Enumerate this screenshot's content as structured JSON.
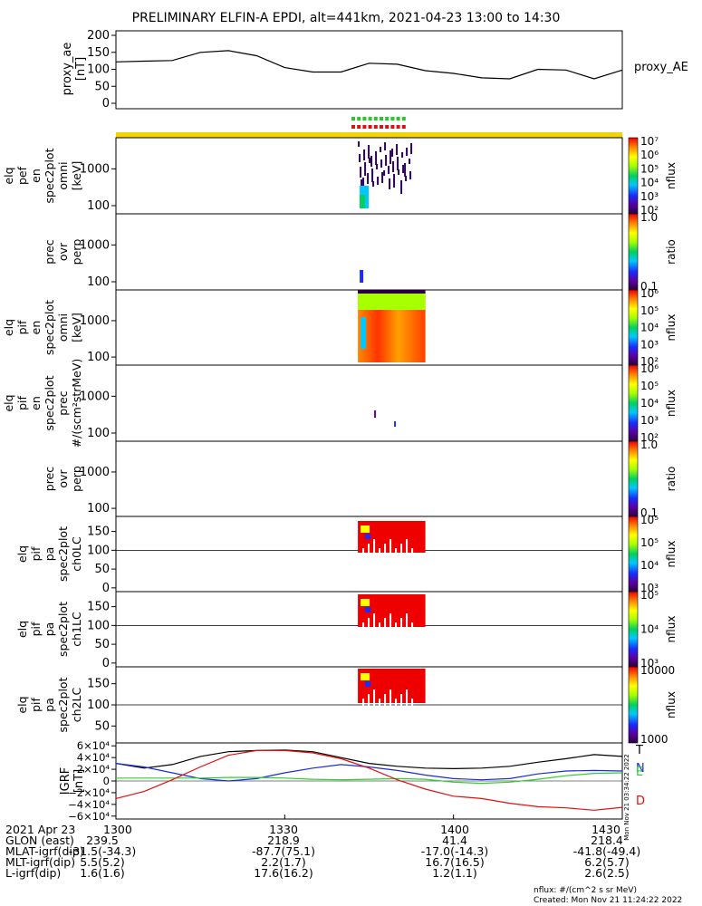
{
  "title": "PRELIMINARY ELFIN-A EPDI, alt=441km, 2021-04-23 13:00 to 14:30",
  "top_panel": {
    "ylabel": [
      "proxy_ae",
      "[nT]"
    ],
    "yticks": [
      "200",
      "150",
      "100",
      "50",
      "0"
    ],
    "legend": "proxy_AE"
  },
  "panels": [
    {
      "id": "p1",
      "ylabel": [
        "elq",
        "pef",
        "en",
        "spec2plot",
        "omni",
        "[keV]"
      ],
      "yticks": [
        "1000",
        "100"
      ],
      "cbar_ticks": [
        "10⁷",
        "10⁶",
        "10⁵",
        "10⁴",
        "10³",
        "10²"
      ],
      "cbar_label": "nflux"
    },
    {
      "id": "p2",
      "ylabel": [
        "prec",
        "ovr",
        "perp"
      ],
      "yticks": [
        "1000",
        "100"
      ],
      "cbar_ticks": [
        "1.0",
        "0.1"
      ],
      "cbar_label": "ratio"
    },
    {
      "id": "p3",
      "ylabel": [
        "elq",
        "pif",
        "en",
        "spec2plot",
        "omni",
        "[keV]"
      ],
      "yticks": [
        "1000",
        "100"
      ],
      "cbar_ticks": [
        "10⁶",
        "10⁵",
        "10⁴",
        "10³",
        "10²"
      ],
      "cbar_label": "nflux"
    },
    {
      "id": "p4",
      "ylabel": [
        "elq",
        "pif",
        "en",
        "spec2plot",
        "prec",
        "#/(scm²strMeV)"
      ],
      "yticks": [
        "1000",
        "100"
      ],
      "cbar_ticks": [
        "10⁶",
        "10⁵",
        "10⁴",
        "10³",
        "10²"
      ],
      "cbar_label": "nflux"
    },
    {
      "id": "p5",
      "ylabel": [
        "prec",
        "ovr",
        "perp"
      ],
      "yticks": [
        "1000",
        "100"
      ],
      "cbar_ticks": [
        "1.0",
        "0.1"
      ],
      "cbar_label": "ratio"
    },
    {
      "id": "p6",
      "ylabel": [
        "elq",
        "pif",
        "pa",
        "spec2plot",
        "ch0LC"
      ],
      "yticks": [
        "150",
        "100",
        "50",
        "0"
      ],
      "cbar_ticks": [
        "10⁵",
        "10⁵",
        "10⁴",
        "10³"
      ],
      "cbar_label": "nflux"
    },
    {
      "id": "p7",
      "ylabel": [
        "elq",
        "pif",
        "pa",
        "spec2plot",
        "ch1LC"
      ],
      "yticks": [
        "150",
        "100",
        "50",
        "0"
      ],
      "cbar_ticks": [
        "10⁵",
        "10⁴",
        "10³"
      ],
      "cbar_label": "nflux"
    },
    {
      "id": "p8",
      "ylabel": [
        "elq",
        "pif",
        "pa",
        "spec2plot",
        "ch2LC"
      ],
      "yticks": [
        "150",
        "100",
        "50"
      ],
      "cbar_ticks": [
        "10000",
        "1000"
      ],
      "cbar_label": "nflux"
    }
  ],
  "igrf_panel": {
    "ylabel": [
      "IGRF",
      "[nT]"
    ],
    "yticks": [
      "6×10⁴",
      "4×10⁴",
      "2×10⁴",
      "0",
      "−2×10⁴",
      "−4×10⁴",
      "−6×10⁴"
    ],
    "legend": [
      {
        "label": "T",
        "color": "#000000"
      },
      {
        "label": "N",
        "color": "#1d2bd6"
      },
      {
        "label": "E",
        "color": "#2dd12d"
      },
      {
        "label": "D",
        "color": "#e01010"
      }
    ],
    "side_text": "Mon Nov 21 03:34:22 2022"
  },
  "footer_rows": [
    {
      "label": "2021 Apr 23",
      "values": [
        "1300",
        "1330",
        "1400",
        "1430"
      ]
    },
    {
      "label": "GLON (east)",
      "values": [
        "239.5",
        "218.9",
        "41.4",
        "218.4"
      ]
    },
    {
      "label": "MLAT-igrf(dip)",
      "values": [
        "-31.5(-34.3)",
        "-87.7(75.1)",
        "-17.0(-14.3)",
        "-41.8(-49.4)"
      ]
    },
    {
      "label": "MLT-igrf(dip)",
      "values": [
        "5.5(5.2)",
        "2.2(1.7)",
        "16.7(16.5)",
        "6.2(5.7)"
      ]
    },
    {
      "label": "L-igrf(dip)",
      "values": [
        "1.6(1.6)",
        "17.6(16.2)",
        "1.2(1.1)",
        "2.6(2.5)"
      ]
    }
  ],
  "credits": {
    "units": "nflux: #/(cm^2 s sr MeV)",
    "created": "Created: Mon Nov 21 11:24:22 2022"
  },
  "colors": {
    "status_bar": "#f5d300",
    "marker_green": "#22cc22",
    "marker_red": "#dd1111"
  },
  "chart_data": [
    {
      "type": "line",
      "title": "PRELIMINARY ELFIN-A EPDI, alt=441km, 2021-04-23 13:00 to 14:30",
      "ylabel": "proxy_ae [nT]",
      "ylim": [
        0,
        200
      ],
      "x_hhmm": [
        "1300",
        "1305",
        "1310",
        "1315",
        "1320",
        "1325",
        "1330",
        "1335",
        "1340",
        "1345",
        "1350",
        "1355",
        "1400",
        "1405",
        "1410",
        "1415",
        "1420",
        "1425",
        "1430"
      ],
      "series": [
        {
          "name": "proxy_AE",
          "values": [
            122,
            124,
            126,
            150,
            155,
            140,
            105,
            92,
            92,
            118,
            115,
            96,
            88,
            75,
            72,
            100,
            98,
            72,
            98
          ]
        }
      ]
    },
    {
      "type": "line",
      "ylabel": "IGRF [nT]",
      "ylim": [
        -65000,
        65000
      ],
      "x_hhmm": [
        "1300",
        "1305",
        "1310",
        "1315",
        "1320",
        "1325",
        "1330",
        "1335",
        "1340",
        "1345",
        "1350",
        "1355",
        "1400",
        "1405",
        "1410",
        "1415",
        "1420",
        "1425",
        "1430"
      ],
      "series": [
        {
          "name": "T",
          "values": [
            30000,
            22000,
            28000,
            42000,
            50000,
            52000,
            53000,
            50000,
            40000,
            30000,
            25000,
            22000,
            21000,
            22000,
            25000,
            32000,
            38000,
            45000,
            42000
          ]
        },
        {
          "name": "N",
          "values": [
            30000,
            24000,
            14000,
            4000,
            0,
            4000,
            14000,
            22000,
            28000,
            24000,
            18000,
            10000,
            4000,
            2000,
            4000,
            12000,
            17000,
            18000,
            17000
          ]
        },
        {
          "name": "E",
          "values": [
            5000,
            5000,
            5000,
            5000,
            6000,
            6000,
            5000,
            3000,
            2000,
            3000,
            4000,
            3000,
            -2000,
            -4000,
            -2000,
            3000,
            9000,
            13000,
            14000
          ]
        },
        {
          "name": "D",
          "values": [
            -30000,
            -18000,
            2000,
            24000,
            44000,
            52000,
            52000,
            48000,
            38000,
            22000,
            2000,
            -14000,
            -26000,
            -30000,
            -38000,
            -44000,
            -46000,
            -50000,
            -45000
          ]
        }
      ]
    },
    {
      "type": "heatmap",
      "x_range_hhmm": [
        "1343",
        "1355"
      ],
      "series": [
        {
          "name": "elq pef en spec2plot omni",
          "ylim_keV": [
            60,
            7000
          ]
        },
        {
          "name": "prec ovr perp",
          "ylim": [
            60,
            7000
          ]
        },
        {
          "name": "elq pif en spec2plot omni",
          "ylim_keV": [
            60,
            7000
          ]
        },
        {
          "name": "elq pif en spec2plot prec",
          "ylim": [
            60,
            7000
          ]
        },
        {
          "name": "prec ovr perp",
          "ylim": [
            60,
            7000
          ]
        },
        {
          "name": "elq pif pa spec2plot ch0LC",
          "ylim": [
            -10,
            190
          ]
        },
        {
          "name": "elq pif pa spec2plot ch1LC",
          "ylim": [
            -10,
            190
          ]
        },
        {
          "name": "elq pif pa spec2plot ch2LC",
          "ylim": [
            10,
            190
          ]
        }
      ]
    }
  ]
}
